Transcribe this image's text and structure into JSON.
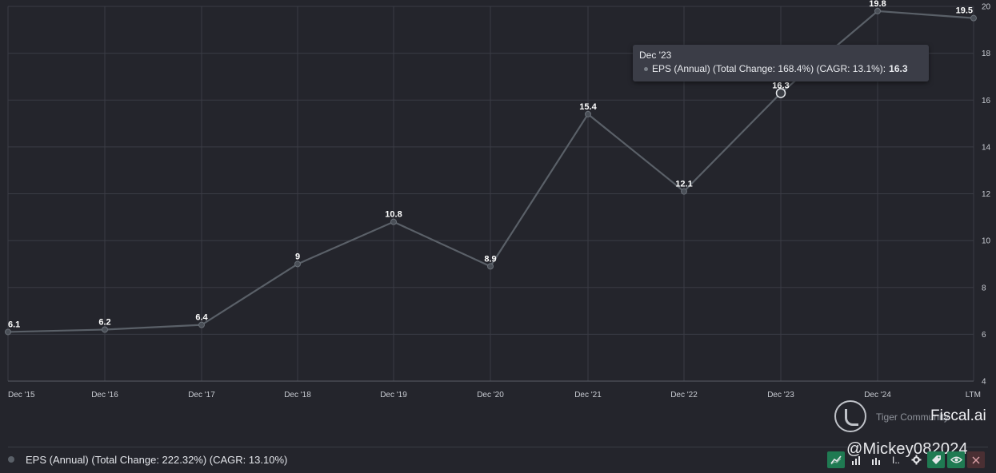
{
  "chart_data": {
    "type": "line",
    "categories": [
      "Dec '15",
      "Dec '16",
      "Dec '17",
      "Dec '18",
      "Dec '19",
      "Dec '20",
      "Dec '21",
      "Dec '22",
      "Dec '23",
      "Dec '24",
      "LTM"
    ],
    "series": [
      {
        "name": "EPS (Annual) (Total Change: 222.32%) (CAGR: 13.10%)",
        "values": [
          6.1,
          6.2,
          6.4,
          9,
          10.8,
          8.9,
          15.4,
          12.1,
          16.3,
          19.8,
          19.5
        ],
        "labels": [
          "6.1",
          "6.2",
          "6.4",
          "9",
          "10.8",
          "8.9",
          "15.4",
          "12.1",
          "16.3",
          "19.8",
          "19.5"
        ]
      }
    ],
    "ylim": [
      4,
      20
    ],
    "yticks": [
      "4",
      "6",
      "8",
      "10",
      "12",
      "14",
      "16",
      "18",
      "20"
    ],
    "grid": true,
    "y_axis_position": "right",
    "legend_position": "bottom-left",
    "active_index": 8
  },
  "tooltip": {
    "title": "Dec '23",
    "label": "EPS (Annual) (Total Change: 168.4%) (CAGR: 13.1%):",
    "value": "16.3"
  },
  "legend": {
    "label": "EPS (Annual) (Total Change: 222.32%) (CAGR: 13.10%)"
  },
  "watermark": {
    "small_text": "Tiger Community",
    "brand": "Fiscal.ai",
    "handle": "@Mickey082024"
  },
  "toolbar": {
    "more_label": "I..",
    "icons": [
      "line-chart-icon",
      "bar-chart-icon",
      "stacked-bar-icon",
      "more-icon",
      "gear-icon",
      "tag-icon",
      "eye-icon",
      "close-icon"
    ]
  },
  "colors": {
    "background": "#24252c",
    "line": "#5a6068",
    "accent_green": "#1f7a52"
  }
}
